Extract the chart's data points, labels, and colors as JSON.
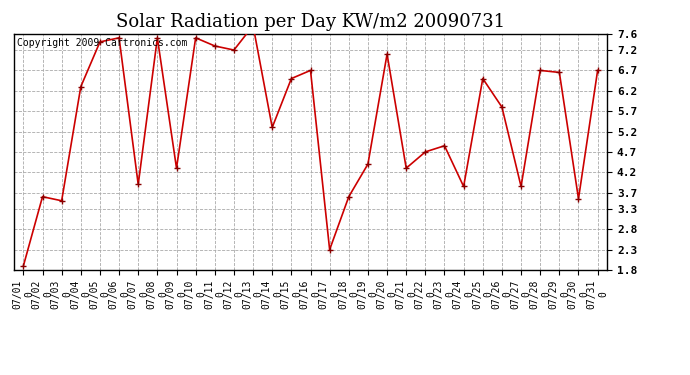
{
  "title": "Solar Radiation per Day KW/m2 20090731",
  "copyright": "Copyright 2009 Cartronics.com",
  "dates": [
    "07/01\n0",
    "07/02\n0",
    "07/03\n0",
    "07/04\n0",
    "07/05\n0",
    "07/06\n0",
    "07/07\n0",
    "07/08\n0",
    "07/09\n0",
    "07/10\n0",
    "07/11\n0",
    "07/12\n0",
    "07/13\n0",
    "07/14\n0",
    "07/15\n0",
    "07/16\n0",
    "07/17\n0",
    "07/18\n0",
    "07/19\n0",
    "07/20\n0",
    "07/21\n0",
    "07/22\n0",
    "07/23\n0",
    "07/24\n0",
    "07/25\n0",
    "07/26\n0",
    "07/27\n0",
    "07/28\n0",
    "07/29\n0",
    "07/30\n0",
    "07/31\n0"
  ],
  "values": [
    1.9,
    3.6,
    3.5,
    6.3,
    7.4,
    7.5,
    3.9,
    7.5,
    4.3,
    7.5,
    7.3,
    7.2,
    7.8,
    5.3,
    6.5,
    6.7,
    2.3,
    3.6,
    4.4,
    7.1,
    4.3,
    4.7,
    4.85,
    3.85,
    6.5,
    5.8,
    3.85,
    6.7,
    6.65,
    3.55,
    6.7
  ],
  "line_color": "#cc0000",
  "marker_color": "#880000",
  "bg_color": "#ffffff",
  "grid_color": "#aaaaaa",
  "ylim": [
    1.8,
    7.6
  ],
  "yticks": [
    1.8,
    2.3,
    2.8,
    3.3,
    3.7,
    4.2,
    4.7,
    5.2,
    5.7,
    6.2,
    6.7,
    7.2,
    7.6
  ],
  "title_fontsize": 13,
  "copyright_fontsize": 7,
  "tick_fontsize": 7,
  "ytick_fontsize": 8
}
